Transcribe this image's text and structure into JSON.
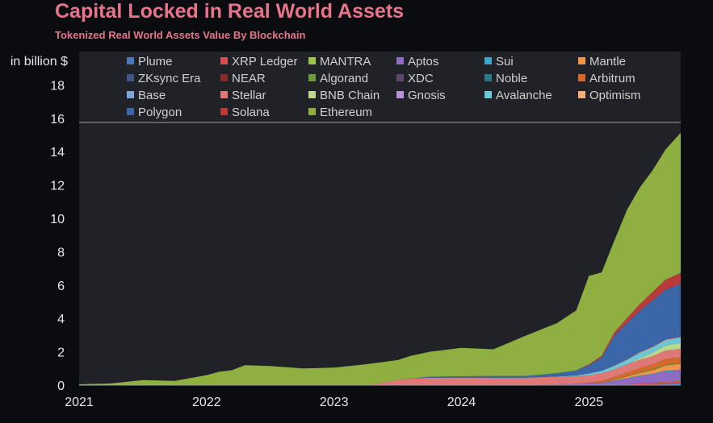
{
  "chart_data": {
    "type": "area",
    "title": "Capital Locked in Real World Assets",
    "subtitle": "Tokenized Real World Assets Value By Blockchain",
    "ylabel": "in billion $",
    "xlabel": "",
    "x_ticks": [
      "2021",
      "2022",
      "2023",
      "2024",
      "2025"
    ],
    "x_range": [
      2021.0,
      2025.72
    ],
    "y_ticks": [
      0,
      2,
      4,
      6,
      8,
      10,
      12,
      14,
      16,
      18
    ],
    "ylim": [
      0,
      20
    ],
    "grid": false,
    "legend_placement": "top",
    "x": [
      2021.0,
      2021.25,
      2021.5,
      2021.75,
      2022.0,
      2022.1,
      2022.2,
      2022.3,
      2022.5,
      2022.75,
      2023.0,
      2023.25,
      2023.5,
      2023.6,
      2023.75,
      2024.0,
      2024.25,
      2024.5,
      2024.75,
      2024.9,
      2025.0,
      2025.1,
      2025.2,
      2025.3,
      2025.4,
      2025.5,
      2025.6,
      2025.72
    ],
    "series": [
      {
        "name": "Plume",
        "color": "#4e79b8",
        "values": [
          0,
          0,
          0,
          0,
          0,
          0,
          0,
          0,
          0,
          0,
          0,
          0,
          0,
          0,
          0,
          0,
          0,
          0,
          0,
          0,
          0,
          0,
          0,
          0,
          0.02,
          0.05,
          0.08,
          0.1
        ]
      },
      {
        "name": "XRP Ledger",
        "color": "#d94f4f",
        "values": [
          0,
          0,
          0,
          0,
          0,
          0,
          0,
          0,
          0,
          0,
          0,
          0,
          0,
          0,
          0,
          0,
          0,
          0,
          0,
          0,
          0,
          0,
          0.02,
          0.05,
          0.08,
          0.1,
          0.12,
          0.15
        ]
      },
      {
        "name": "MANTRA",
        "color": "#9bc44a",
        "values": [
          0,
          0,
          0,
          0,
          0,
          0,
          0,
          0,
          0,
          0,
          0,
          0,
          0,
          0,
          0,
          0,
          0,
          0,
          0,
          0,
          0,
          0,
          0,
          0,
          0,
          0,
          0.02,
          0.03
        ]
      },
      {
        "name": "Aptos",
        "color": "#8e6cc4",
        "values": [
          0,
          0,
          0,
          0,
          0,
          0,
          0,
          0,
          0,
          0,
          0,
          0,
          0,
          0,
          0,
          0,
          0,
          0,
          0.05,
          0.08,
          0.1,
          0.15,
          0.25,
          0.35,
          0.45,
          0.5,
          0.6,
          0.6
        ]
      },
      {
        "name": "Sui",
        "color": "#3fa8c9",
        "values": [
          0,
          0,
          0,
          0,
          0,
          0,
          0,
          0,
          0,
          0,
          0,
          0,
          0,
          0,
          0,
          0,
          0,
          0,
          0,
          0,
          0,
          0,
          0.01,
          0.02,
          0.03,
          0.04,
          0.05,
          0.05
        ]
      },
      {
        "name": "Mantle",
        "color": "#f0964a",
        "values": [
          0,
          0,
          0,
          0,
          0,
          0,
          0,
          0,
          0,
          0,
          0,
          0,
          0,
          0,
          0,
          0,
          0,
          0,
          0,
          0,
          0,
          0,
          0.05,
          0.1,
          0.15,
          0.2,
          0.3,
          0.35
        ]
      },
      {
        "name": "ZKsync Era",
        "color": "#3a5a85",
        "values": [
          0,
          0,
          0,
          0,
          0,
          0,
          0,
          0,
          0,
          0,
          0,
          0,
          0,
          0,
          0,
          0,
          0,
          0,
          0,
          0,
          0,
          0,
          0,
          0,
          0,
          0,
          0,
          0
        ]
      },
      {
        "name": "NEAR",
        "color": "#8a2a2a",
        "values": [
          0,
          0,
          0,
          0,
          0,
          0,
          0,
          0,
          0,
          0,
          0,
          0,
          0,
          0,
          0,
          0,
          0,
          0,
          0,
          0,
          0,
          0,
          0,
          0,
          0,
          0,
          0,
          0
        ]
      },
      {
        "name": "Algorand",
        "color": "#6a9a3a",
        "values": [
          0,
          0,
          0,
          0,
          0,
          0,
          0,
          0,
          0,
          0,
          0,
          0,
          0,
          0,
          0,
          0,
          0,
          0,
          0,
          0,
          0,
          0.01,
          0.02,
          0.03,
          0.04,
          0.05,
          0.05,
          0.05
        ]
      },
      {
        "name": "XDC",
        "color": "#5a4a6e",
        "values": [
          0,
          0,
          0,
          0,
          0,
          0,
          0,
          0,
          0,
          0,
          0,
          0,
          0,
          0,
          0,
          0,
          0,
          0,
          0,
          0,
          0,
          0,
          0,
          0,
          0,
          0,
          0,
          0
        ]
      },
      {
        "name": "Noble",
        "color": "#2a7a8a",
        "values": [
          0,
          0,
          0,
          0,
          0,
          0,
          0,
          0,
          0,
          0,
          0,
          0,
          0,
          0,
          0,
          0,
          0,
          0,
          0,
          0,
          0,
          0,
          0,
          0,
          0,
          0,
          0,
          0
        ]
      },
      {
        "name": "Arbitrum",
        "color": "#d46a2a",
        "values": [
          0,
          0,
          0,
          0,
          0,
          0,
          0,
          0,
          0,
          0,
          0,
          0,
          0,
          0,
          0,
          0,
          0,
          0,
          0,
          0,
          0.05,
          0.1,
          0.15,
          0.2,
          0.25,
          0.3,
          0.35,
          0.35
        ]
      },
      {
        "name": "Base",
        "color": "#7fa6d6",
        "values": [
          0,
          0,
          0,
          0,
          0,
          0,
          0,
          0,
          0,
          0,
          0,
          0,
          0,
          0,
          0,
          0,
          0,
          0,
          0,
          0,
          0,
          0,
          0,
          0,
          0,
          0,
          0,
          0
        ]
      },
      {
        "name": "Stellar",
        "color": "#e07878",
        "values": [
          0,
          0,
          0,
          0,
          0,
          0,
          0,
          0,
          0,
          0,
          0,
          0,
          0.3,
          0.4,
          0.45,
          0.45,
          0.45,
          0.45,
          0.45,
          0.45,
          0.45,
          0.45,
          0.45,
          0.5,
          0.5,
          0.5,
          0.5,
          0.5
        ]
      },
      {
        "name": "BNB Chain",
        "color": "#bcd88a",
        "values": [
          0,
          0,
          0,
          0,
          0,
          0,
          0,
          0,
          0,
          0,
          0,
          0,
          0,
          0,
          0,
          0,
          0,
          0,
          0,
          0,
          0,
          0,
          0,
          0,
          0.1,
          0.2,
          0.3,
          0.35
        ]
      },
      {
        "name": "Gnosis",
        "color": "#b890d8",
        "values": [
          0,
          0,
          0,
          0,
          0,
          0,
          0,
          0,
          0,
          0,
          0,
          0,
          0,
          0,
          0,
          0,
          0,
          0,
          0,
          0,
          0,
          0,
          0,
          0,
          0,
          0,
          0,
          0
        ]
      },
      {
        "name": "Avalanche",
        "color": "#6ac8d8",
        "values": [
          0,
          0,
          0,
          0,
          0,
          0,
          0,
          0,
          0,
          0,
          0,
          0,
          0,
          0,
          0,
          0,
          0,
          0,
          0.02,
          0.05,
          0.1,
          0.15,
          0.2,
          0.25,
          0.3,
          0.3,
          0.3,
          0.3
        ]
      },
      {
        "name": "Optimism",
        "color": "#f4b07a",
        "values": [
          0,
          0,
          0,
          0,
          0,
          0,
          0,
          0,
          0,
          0,
          0,
          0,
          0,
          0,
          0,
          0,
          0,
          0,
          0,
          0,
          0,
          0,
          0.02,
          0.03,
          0.04,
          0.05,
          0.05,
          0.05
        ]
      },
      {
        "name": "Polygon",
        "color": "#3b66a8",
        "values": [
          0,
          0,
          0,
          0,
          0,
          0,
          0,
          0,
          0,
          0,
          0,
          0,
          0,
          0,
          0.05,
          0.08,
          0.1,
          0.1,
          0.2,
          0.3,
          0.5,
          0.8,
          1.8,
          2.2,
          2.5,
          2.8,
          3.0,
          3.2
        ]
      },
      {
        "name": "Solana",
        "color": "#b83a3a",
        "values": [
          0,
          0,
          0,
          0,
          0,
          0,
          0,
          0,
          0,
          0,
          0,
          0,
          0,
          0,
          0,
          0,
          0,
          0,
          0,
          0,
          0.05,
          0.1,
          0.2,
          0.3,
          0.4,
          0.5,
          0.6,
          0.65
        ]
      },
      {
        "name": "Ethereum",
        "color": "#8fb040",
        "values": [
          0.05,
          0.1,
          0.3,
          0.25,
          0.6,
          0.8,
          0.9,
          1.2,
          1.15,
          1.0,
          1.05,
          1.25,
          1.2,
          1.35,
          1.5,
          1.7,
          1.6,
          2.4,
          3.0,
          3.6,
          5.3,
          5.0,
          5.5,
          6.5,
          7.0,
          7.3,
          7.8,
          8.4
        ]
      }
    ]
  }
}
